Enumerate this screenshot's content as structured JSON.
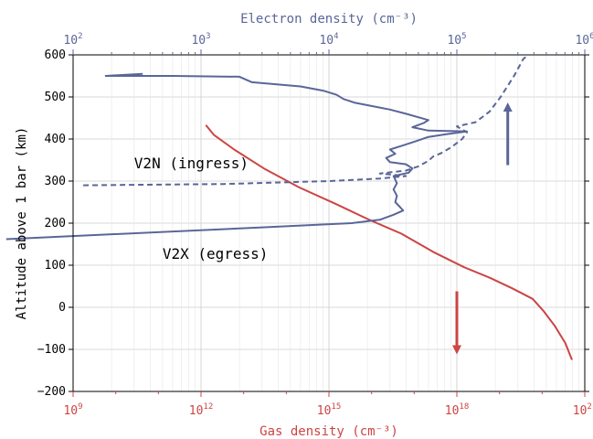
{
  "chart_data": {
    "type": "line",
    "xlabel": "Gas density (cm⁻³)",
    "x2label": "Electron density (cm⁻³)",
    "ylabel": "Altitude above 1 bar (km)",
    "xscale": "log",
    "x2scale": "log",
    "xlim": [
      1000000000.0,
      1e+21
    ],
    "x2lim": [
      100,
      1000000
    ],
    "ylim": [
      -200,
      600
    ],
    "grid": true,
    "colors": {
      "gas": "#cc4444",
      "electron": "#5a6699"
    },
    "x_ticks": [
      {
        "value": 1000000000.0,
        "base": "10",
        "exp": "9"
      },
      {
        "value": 1000000000000.0,
        "base": "10",
        "exp": "12"
      },
      {
        "value": 1000000000000000.0,
        "base": "10",
        "exp": "15"
      },
      {
        "value": 1e+18,
        "base": "10",
        "exp": "18"
      },
      {
        "value": 1e+21,
        "base": "10",
        "exp": "21"
      }
    ],
    "x2_ticks": [
      {
        "value": 100,
        "base": "10",
        "exp": "2"
      },
      {
        "value": 1000,
        "base": "10",
        "exp": "3"
      },
      {
        "value": 10000,
        "base": "10",
        "exp": "4"
      },
      {
        "value": 100000,
        "base": "10",
        "exp": "5"
      },
      {
        "value": 1000000,
        "base": "10",
        "exp": "6"
      }
    ],
    "y_ticks": [
      "−200",
      "−100",
      "0",
      "100",
      "200",
      "300",
      "400",
      "500",
      "600"
    ],
    "annotations": [
      {
        "text": "V2N (ingress)",
        "x": 300,
        "y": 330
      },
      {
        "text": "V2X (egress)",
        "x": 500,
        "y": 115
      }
    ],
    "series": [
      {
        "id": "gas",
        "axis": "bottom",
        "style": "solid",
        "points": [
          [
            1300000000000.0,
            433
          ],
          [
            2000000000000.0,
            410
          ],
          [
            6000000000000.0,
            375
          ],
          [
            30000000000000.0,
            330
          ],
          [
            200000000000000.0,
            285
          ],
          [
            1500000000000000.0,
            245
          ],
          [
            8000000000000000.0,
            210
          ],
          [
            5e+16,
            175
          ],
          [
            3e+17,
            130
          ],
          [
            1.5e+18,
            95
          ],
          [
            6e+18,
            70
          ],
          [
            2e+19,
            45
          ],
          [
            6e+19,
            20
          ],
          [
            1.1e+20,
            -10
          ],
          [
            2e+20,
            -45
          ],
          [
            3.5e+20,
            -85
          ],
          [
            5e+20,
            -125
          ]
        ]
      },
      {
        "id": "v2x",
        "axis": "top",
        "style": "solid",
        "points": [
          [
            30,
            162
          ],
          [
            3000,
            190
          ],
          [
            15000,
            200
          ],
          [
            25000,
            208
          ],
          [
            32000,
            220
          ],
          [
            38000,
            230
          ],
          [
            36000,
            238
          ],
          [
            33000,
            250
          ],
          [
            34000,
            265
          ],
          [
            32000,
            280
          ],
          [
            34000,
            295
          ],
          [
            32000,
            312
          ],
          [
            42000,
            320
          ],
          [
            45000,
            330
          ],
          [
            40000,
            340
          ],
          [
            30000,
            345
          ],
          [
            28000,
            355
          ],
          [
            33000,
            365
          ],
          [
            30000,
            375
          ],
          [
            38000,
            385
          ],
          [
            48000,
            395
          ],
          [
            60000,
            405
          ],
          [
            85000,
            412
          ],
          [
            120000,
            418
          ],
          [
            60000,
            420
          ],
          [
            45000,
            428
          ],
          [
            55000,
            438
          ],
          [
            60000,
            445
          ],
          [
            40000,
            460
          ],
          [
            30000,
            470
          ],
          [
            22000,
            478
          ],
          [
            16000,
            486
          ],
          [
            13000,
            495
          ],
          [
            11500,
            505
          ],
          [
            9000,
            515
          ],
          [
            6000,
            525
          ],
          [
            2500,
            535
          ],
          [
            2000,
            548
          ],
          [
            600,
            550
          ],
          [
            180,
            550
          ],
          [
            350,
            555
          ]
        ]
      },
      {
        "id": "v2n",
        "axis": "top",
        "style": "dashed",
        "points": [
          [
            120,
            290
          ],
          [
            1500,
            293
          ],
          [
            10000,
            300
          ],
          [
            25000,
            306
          ],
          [
            40000,
            312
          ],
          [
            25000,
            318
          ],
          [
            40000,
            325
          ],
          [
            50000,
            335
          ],
          [
            60000,
            348
          ],
          [
            65000,
            358
          ],
          [
            75000,
            366
          ],
          [
            90000,
            380
          ],
          [
            110000,
            400
          ],
          [
            120000,
            416
          ],
          [
            100000,
            430
          ],
          [
            140000,
            440
          ],
          [
            180000,
            465
          ],
          [
            220000,
            500
          ],
          [
            280000,
            550
          ],
          [
            330000,
            590
          ],
          [
            360000,
            600
          ]
        ]
      }
    ],
    "arrows": [
      {
        "color": "#5a6699",
        "axis": "top",
        "x": 250000,
        "y_from": 338,
        "y_to": 487
      },
      {
        "color": "#cc4444",
        "axis": "bottom",
        "x": 1e+18,
        "y_from": 38,
        "y_to": -112
      }
    ]
  }
}
